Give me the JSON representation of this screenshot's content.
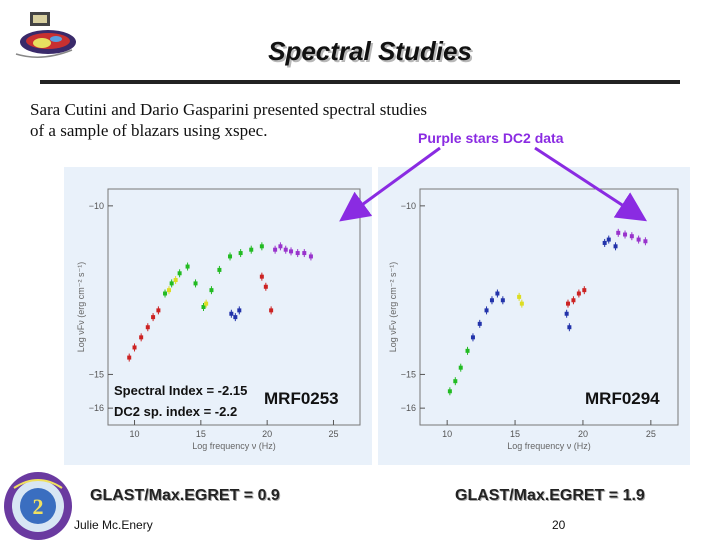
{
  "slide": {
    "title": "Spectral Studies",
    "body_line_1": "Sara Cutini and Dario Gasparini presented spectral studies",
    "body_line_2": "of a sample of blazars using xspec.",
    "purple_note": "Purple stars DC2 data",
    "author": "Julie Mc.Enery",
    "page_number": "20"
  },
  "colors": {
    "purple_arrow": "#8a2be2",
    "panel_bg": "#e9f1fa",
    "title_shadow": "#b8b8b8"
  },
  "icons": {
    "top_logo": "glast-mission-logo-icon",
    "bottom_logo": "data-challenge-2-seal-icon"
  },
  "left_plot": {
    "source_label": "MRF0253",
    "spectral_index": "Spectral Index = -2.15",
    "dc2_index": "DC2 sp. index = -2.2",
    "ratio": "GLAST/Max.EGRET = 0.9"
  },
  "right_plot": {
    "source_label": "MRF0294",
    "ratio": "GLAST/Max.EGRET = 1.9"
  },
  "chart_data": [
    {
      "type": "scatter",
      "title": "",
      "xlabel": "Log frequency ν (Hz)",
      "ylabel": "Log νFν (erg cm⁻² s⁻¹)",
      "xticks": [
        "10",
        "15",
        "20",
        "25"
      ],
      "yticks": [
        "−10",
        "−15",
        "−16"
      ],
      "xlim": [
        8,
        27
      ],
      "ylim": [
        -16.5,
        -9.5
      ],
      "series": [
        {
          "color": "#cc2222",
          "points": [
            [
              9.6,
              -14.5
            ],
            [
              10.0,
              -14.2
            ],
            [
              10.5,
              -13.9
            ],
            [
              11.0,
              -13.6
            ],
            [
              11.4,
              -13.3
            ],
            [
              11.8,
              -13.1
            ]
          ]
        },
        {
          "color": "#22bb22",
          "points": [
            [
              12.3,
              -12.6
            ],
            [
              12.8,
              -12.3
            ],
            [
              13.4,
              -12.0
            ],
            [
              14.0,
              -11.8
            ],
            [
              14.6,
              -12.3
            ],
            [
              15.2,
              -13.0
            ],
            [
              15.8,
              -12.5
            ],
            [
              16.4,
              -11.9
            ],
            [
              17.2,
              -11.5
            ],
            [
              18.0,
              -11.4
            ],
            [
              18.8,
              -11.3
            ],
            [
              19.6,
              -11.2
            ]
          ]
        },
        {
          "color": "#dddd22",
          "points": [
            [
              12.6,
              -12.5
            ],
            [
              13.1,
              -12.2
            ],
            [
              15.4,
              -12.9
            ]
          ]
        },
        {
          "color": "#2233aa",
          "points": [
            [
              17.3,
              -13.2
            ],
            [
              17.6,
              -13.3
            ],
            [
              17.9,
              -13.1
            ]
          ]
        },
        {
          "color": "#cc2222",
          "points": [
            [
              19.6,
              -12.1
            ],
            [
              19.9,
              -12.4
            ],
            [
              20.3,
              -13.1
            ]
          ]
        },
        {
          "color": "#9933cc",
          "points": [
            [
              20.6,
              -11.3
            ],
            [
              21.0,
              -11.2
            ],
            [
              21.4,
              -11.3
            ],
            [
              21.8,
              -11.35
            ],
            [
              22.3,
              -11.4
            ],
            [
              22.8,
              -11.4
            ],
            [
              23.3,
              -11.5
            ]
          ]
        }
      ]
    },
    {
      "type": "scatter",
      "title": "",
      "xlabel": "Log frequency ν (Hz)",
      "ylabel": "Log νFν (erg cm⁻² s⁻¹)",
      "xticks": [
        "10",
        "15",
        "20",
        "25"
      ],
      "yticks": [
        "−10",
        "−15",
        "−16"
      ],
      "xlim": [
        8,
        27
      ],
      "ylim": [
        -16.5,
        -9.5
      ],
      "series": [
        {
          "color": "#22bb22",
          "points": [
            [
              10.2,
              -15.5
            ],
            [
              10.6,
              -15.2
            ],
            [
              11.0,
              -14.8
            ],
            [
              11.5,
              -14.3
            ]
          ]
        },
        {
          "color": "#2233aa",
          "points": [
            [
              11.9,
              -13.9
            ],
            [
              12.4,
              -13.5
            ],
            [
              12.9,
              -13.1
            ],
            [
              13.3,
              -12.8
            ],
            [
              13.7,
              -12.6
            ],
            [
              14.1,
              -12.8
            ],
            [
              18.8,
              -13.2
            ],
            [
              19.0,
              -13.6
            ],
            [
              21.6,
              -11.1
            ],
            [
              21.9,
              -11.0
            ],
            [
              22.4,
              -11.2
            ]
          ]
        },
        {
          "color": "#dddd22",
          "points": [
            [
              15.3,
              -12.7
            ],
            [
              15.5,
              -12.9
            ]
          ]
        },
        {
          "color": "#cc2222",
          "points": [
            [
              18.9,
              -12.9
            ],
            [
              19.3,
              -12.8
            ],
            [
              19.7,
              -12.6
            ],
            [
              20.1,
              -12.5
            ]
          ]
        },
        {
          "color": "#9933cc",
          "points": [
            [
              22.6,
              -10.8
            ],
            [
              23.1,
              -10.85
            ],
            [
              23.6,
              -10.9
            ],
            [
              24.1,
              -11.0
            ],
            [
              24.6,
              -11.05
            ]
          ]
        }
      ]
    }
  ]
}
